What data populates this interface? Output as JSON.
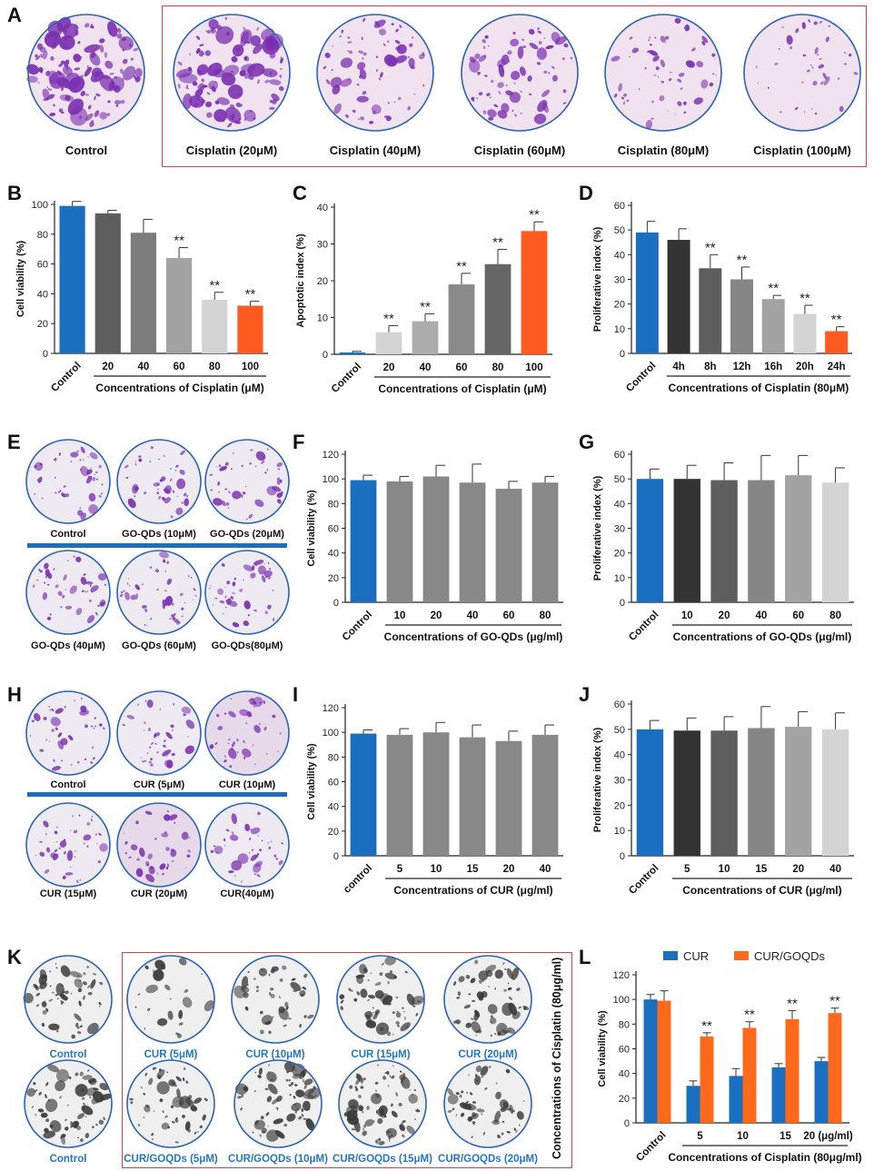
{
  "panel_letters": {
    "A": "A",
    "B": "B",
    "C": "C",
    "D": "D",
    "E": "E",
    "F": "F",
    "G": "G",
    "H": "H",
    "I": "I",
    "J": "J",
    "K": "K",
    "L": "L"
  },
  "colors": {
    "purple_stain": "#7a2fb0",
    "gray_stain": "#3a3a3a",
    "ring": "#2a63b6",
    "red_box": "#e0403b",
    "blue_bar": "#1f6fb8",
    "control_blue": "#1a6fc0",
    "cisplatin_orange": "#ff5a1f"
  },
  "panel_A": {
    "labels": [
      "Control",
      "Cisplatin (20μM)",
      "Cisplatin (40μM)",
      "Cisplatin (60μM)",
      "Cisplatin (80μM)",
      "Cisplatin (100μM)"
    ]
  },
  "panel_E": {
    "labels": [
      "Control",
      "GO-QDs (10μM)",
      "GO-QDs (20μM)",
      "GO-QDs (40μM)",
      "GO-QDs (60μM)",
      "GO-QDs(80μM)"
    ]
  },
  "panel_H": {
    "labels": [
      "Control",
      "CUR (5μM)",
      "CUR (10μM)",
      "CUR (15μM)",
      "CUR (20μM)",
      "CUR(40μM)"
    ]
  },
  "panel_K": {
    "top_labels": [
      "Control",
      "CUR (5μM)",
      "CUR (10μM)",
      "CUR (15μM)",
      "CUR (20μM)"
    ],
    "bottom_labels": [
      "Control",
      "CUR/GOQDs (5μM)",
      "CUR/GOQDs  (10μM)",
      "CUR/GOQDs (15μM)",
      "CUR/GOQDs (20μM)"
    ],
    "side_label": "Concentrations of Cisplatin (80μg/ml)"
  },
  "chart_data": [
    {
      "id": "B",
      "type": "bar",
      "ylabel": "Cell viability (%)",
      "xlabel": "Concentrations of Cisplatin (μM)",
      "ylim": [
        0,
        100
      ],
      "yticks": [
        0,
        20,
        40,
        60,
        80,
        100
      ],
      "categories": [
        "Control",
        "20",
        "40",
        "60",
        "80",
        "100"
      ],
      "values": [
        99,
        94,
        81,
        64,
        36,
        32
      ],
      "errors": [
        3,
        2,
        9,
        7,
        5,
        3
      ],
      "colors": [
        "#1a6fc0",
        "#5e5e5e",
        "#7c7c7c",
        "#a3a3a3",
        "#d4d4d4",
        "#ff5a1f"
      ],
      "annotations": [
        "",
        "",
        "",
        "**",
        "**",
        "**"
      ]
    },
    {
      "id": "C",
      "type": "bar",
      "ylabel": "Apoptotic index (%)",
      "xlabel": "Concentrations of Cisplatin (μM)",
      "ylim": [
        0,
        40
      ],
      "yticks": [
        0,
        10,
        20,
        30,
        40
      ],
      "categories": [
        "Control",
        "20",
        "40",
        "60",
        "80",
        "100"
      ],
      "values": [
        0.5,
        6,
        9,
        19,
        24.5,
        33.5
      ],
      "errors": [
        0.3,
        1.8,
        2,
        3,
        4,
        2.5
      ],
      "colors": [
        "#1a6fc0",
        "#d4d4d4",
        "#acacac",
        "#8a8a8a",
        "#666666",
        "#ff5a1f"
      ],
      "annotations": [
        "",
        "**",
        "**",
        "**",
        "**",
        "**"
      ]
    },
    {
      "id": "D",
      "type": "bar",
      "ylabel": "Proliferative index (%)",
      "xlabel": "Concentrations of Cisplatin (80μM)",
      "ylim": [
        0,
        60
      ],
      "yticks": [
        0,
        10,
        20,
        30,
        40,
        50,
        60
      ],
      "categories": [
        "Control",
        "4h",
        "8h",
        "12h",
        "16h",
        "20h",
        "24h"
      ],
      "values": [
        49,
        46,
        34.5,
        30,
        22,
        16,
        9
      ],
      "errors": [
        4.5,
        4.5,
        5.5,
        5,
        1.5,
        3.5,
        1.8
      ],
      "colors": [
        "#1a6fc0",
        "#333333",
        "#5e5e5e",
        "#858585",
        "#a3a3a3",
        "#d4d4d4",
        "#ff5a1f"
      ],
      "annotations": [
        "",
        "",
        "**",
        "**",
        "**",
        "**",
        "**"
      ]
    },
    {
      "id": "F",
      "type": "bar",
      "ylabel": "Cell viability (%)",
      "xlabel": "Concentrations of GO-QDs (μg/ml)",
      "ylim": [
        0,
        120
      ],
      "yticks": [
        0,
        20,
        40,
        60,
        80,
        100,
        120
      ],
      "categories": [
        "Control",
        "10",
        "20",
        "40",
        "60",
        "80"
      ],
      "values": [
        99,
        98,
        102,
        97,
        92,
        97
      ],
      "errors": [
        4,
        4,
        9,
        15,
        6,
        5
      ],
      "colors": [
        "#1a6fc0",
        "#888888",
        "#888888",
        "#888888",
        "#888888",
        "#888888"
      ],
      "annotations": [
        "",
        "",
        "",
        "",
        "",
        ""
      ]
    },
    {
      "id": "G",
      "type": "bar",
      "ylabel": "Proliferative index (%)",
      "xlabel": "Concentrations of GO-QDs (μg/ml)",
      "ylim": [
        0,
        60
      ],
      "yticks": [
        0,
        10,
        20,
        30,
        40,
        50,
        60
      ],
      "categories": [
        "Control",
        "10",
        "20",
        "40",
        "60",
        "80"
      ],
      "values": [
        50,
        50,
        49.5,
        49.5,
        51.5,
        48.5
      ],
      "errors": [
        4,
        5.5,
        7,
        10,
        8,
        6
      ],
      "colors": [
        "#1a6fc0",
        "#333333",
        "#5e5e5e",
        "#858585",
        "#a3a3a3",
        "#d4d4d4"
      ],
      "annotations": [
        "",
        "",
        "",
        "",
        "",
        ""
      ]
    },
    {
      "id": "I",
      "type": "bar",
      "ylabel": "Cell viability (%)",
      "xlabel": "Concentrations of CUR (μg/ml)",
      "ylim": [
        0,
        120
      ],
      "yticks": [
        0,
        20,
        40,
        60,
        80,
        100,
        120
      ],
      "categories": [
        "control",
        "5",
        "10",
        "15",
        "20",
        "40"
      ],
      "values": [
        99,
        98,
        100,
        96,
        93,
        98
      ],
      "errors": [
        3,
        5,
        8,
        10,
        8,
        8
      ],
      "colors": [
        "#1a6fc0",
        "#888888",
        "#888888",
        "#888888",
        "#888888",
        "#888888"
      ],
      "annotations": [
        "",
        "",
        "",
        "",
        "",
        ""
      ]
    },
    {
      "id": "J",
      "type": "bar",
      "ylabel": "Proliferative index (%)",
      "xlabel": "Concentrations of CUR (μg/ml)",
      "ylim": [
        0,
        60
      ],
      "yticks": [
        0,
        10,
        20,
        30,
        40,
        50,
        60
      ],
      "categories": [
        "Control",
        "5",
        "10",
        "15",
        "20",
        "40"
      ],
      "values": [
        50,
        49.5,
        49.5,
        50.5,
        51,
        50
      ],
      "errors": [
        3.5,
        5,
        5.5,
        8.5,
        6,
        6.5
      ],
      "colors": [
        "#1a6fc0",
        "#333333",
        "#5e5e5e",
        "#858585",
        "#a3a3a3",
        "#d4d4d4"
      ],
      "annotations": [
        "",
        "",
        "",
        "",
        "",
        ""
      ]
    },
    {
      "id": "L",
      "type": "bar",
      "ylabel": "Cell viability (%)",
      "xlabel": "Concentrations of Cisplatin (80μg/ml)",
      "ylim": [
        0,
        120
      ],
      "yticks": [
        0,
        20,
        40,
        60,
        80,
        100,
        120
      ],
      "categories": [
        "Control",
        "5",
        "10",
        "15",
        "20 (μg/ml)"
      ],
      "series": [
        {
          "name": "CUR",
          "color": "#1a6fc0",
          "values": [
            100,
            30,
            38,
            45,
            50
          ],
          "errors": [
            4,
            4,
            6,
            3,
            3
          ]
        },
        {
          "name": "CUR/GOQDs",
          "color": "#ff6a1a",
          "values": [
            99,
            70,
            77,
            84,
            89
          ],
          "errors": [
            8,
            3,
            5,
            7,
            4
          ]
        }
      ],
      "annotations": [
        "",
        "**",
        "**",
        "**",
        "**"
      ]
    }
  ]
}
